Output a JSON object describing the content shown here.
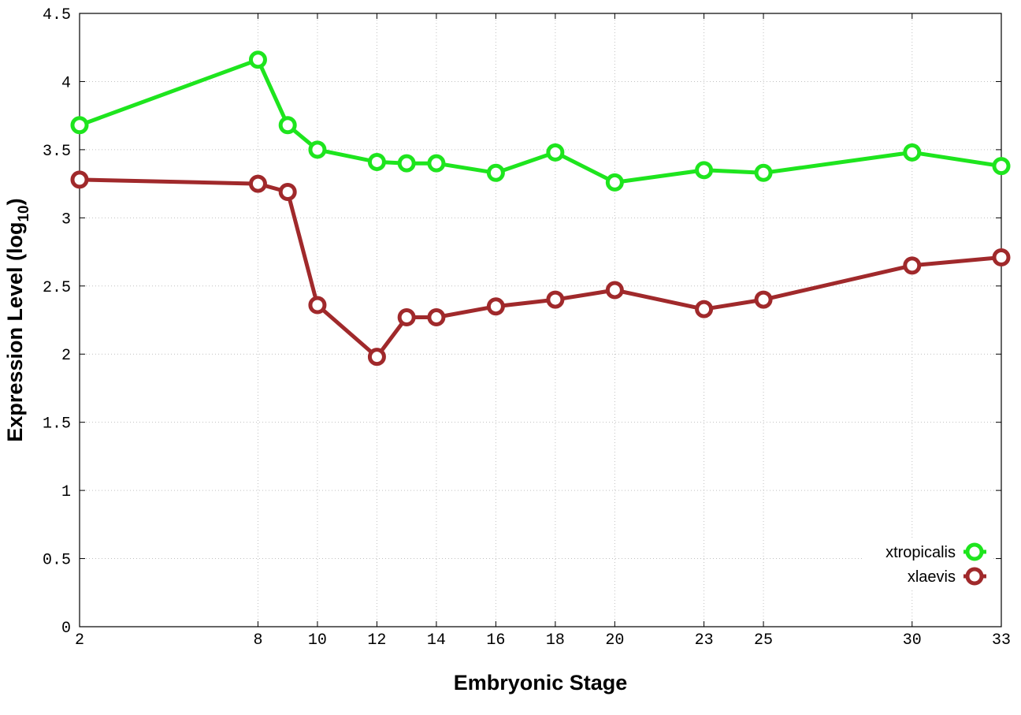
{
  "chart_data": {
    "type": "line",
    "title": "",
    "xlabel": "Embryonic Stage",
    "ylabel": {
      "main": "Expression Level (log",
      "sub": "10",
      "close": ")"
    },
    "x_ticks": [
      2,
      8,
      10,
      12,
      14,
      16,
      18,
      20,
      23,
      25,
      30,
      33
    ],
    "y_ticks": [
      "0",
      "0.5",
      "1",
      "1.5",
      "2",
      "2.5",
      "3",
      "3.5",
      "4",
      "4.5"
    ],
    "ylim": [
      0,
      4.5
    ],
    "grid": true,
    "legend_position": "bottom-right",
    "series": [
      {
        "name": "xtropicalis",
        "color": "#1ee51e",
        "marker": "circle",
        "points": [
          {
            "x": 2,
            "y": 3.68
          },
          {
            "x": 8,
            "y": 4.16
          },
          {
            "x": 9,
            "y": 3.68
          },
          {
            "x": 10,
            "y": 3.5
          },
          {
            "x": 12,
            "y": 3.41
          },
          {
            "x": 13,
            "y": 3.4
          },
          {
            "x": 14,
            "y": 3.4
          },
          {
            "x": 16,
            "y": 3.33
          },
          {
            "x": 18,
            "y": 3.48
          },
          {
            "x": 20,
            "y": 3.26
          },
          {
            "x": 23,
            "y": 3.35
          },
          {
            "x": 25,
            "y": 3.33
          },
          {
            "x": 30,
            "y": 3.48
          },
          {
            "x": 33,
            "y": 3.38
          }
        ]
      },
      {
        "name": "xlaevis",
        "color": "#a0292b",
        "marker": "circle",
        "points": [
          {
            "x": 2,
            "y": 3.28
          },
          {
            "x": 8,
            "y": 3.25
          },
          {
            "x": 9,
            "y": 3.19
          },
          {
            "x": 10,
            "y": 2.36
          },
          {
            "x": 12,
            "y": 1.98
          },
          {
            "x": 13,
            "y": 2.27
          },
          {
            "x": 14,
            "y": 2.27
          },
          {
            "x": 16,
            "y": 2.35
          },
          {
            "x": 18,
            "y": 2.4
          },
          {
            "x": 20,
            "y": 2.47
          },
          {
            "x": 23,
            "y": 2.33
          },
          {
            "x": 25,
            "y": 2.4
          },
          {
            "x": 30,
            "y": 2.65
          },
          {
            "x": 33,
            "y": 2.71
          }
        ]
      }
    ]
  }
}
